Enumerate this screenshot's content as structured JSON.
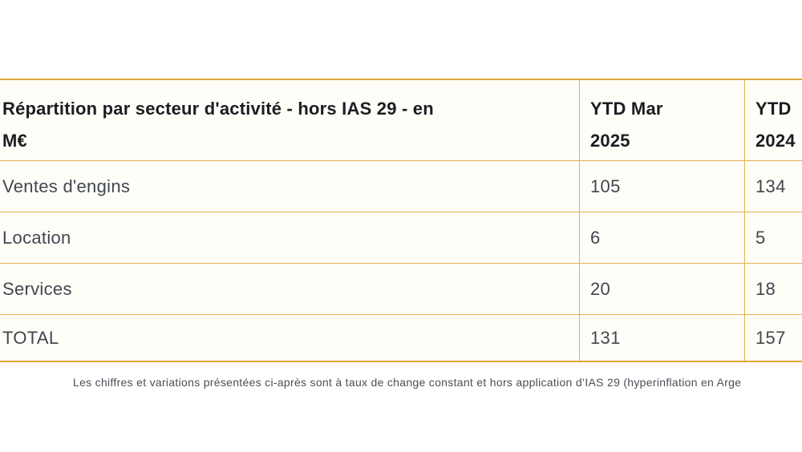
{
  "table": {
    "header": {
      "col1": "Répartition par secteur d'activité - hors IAS 29 - en\nM€",
      "col2": "YTD Mar\n2025",
      "col3": "YTD\n2024"
    },
    "rows": [
      {
        "label": "Ventes d'engins",
        "ytd_mar_2025": "105",
        "ytd_2024": "134"
      },
      {
        "label": "Location",
        "ytd_mar_2025": "6",
        "ytd_2024": "5"
      },
      {
        "label": "Services",
        "ytd_mar_2025": "20",
        "ytd_2024": "18"
      },
      {
        "label": "TOTAL",
        "ytd_mar_2025": "131",
        "ytd_2024": "157"
      }
    ]
  },
  "footnote": "Les chiffres et variations présentées ci-après sont à taux de change constant et hors application d’IAS 29 (hyperinflation en Arge",
  "colors": {
    "border_gold": "#e2a93c",
    "header_text": "#1b1d21",
    "body_text": "#41474f",
    "cell_background": "#fffdf8"
  }
}
